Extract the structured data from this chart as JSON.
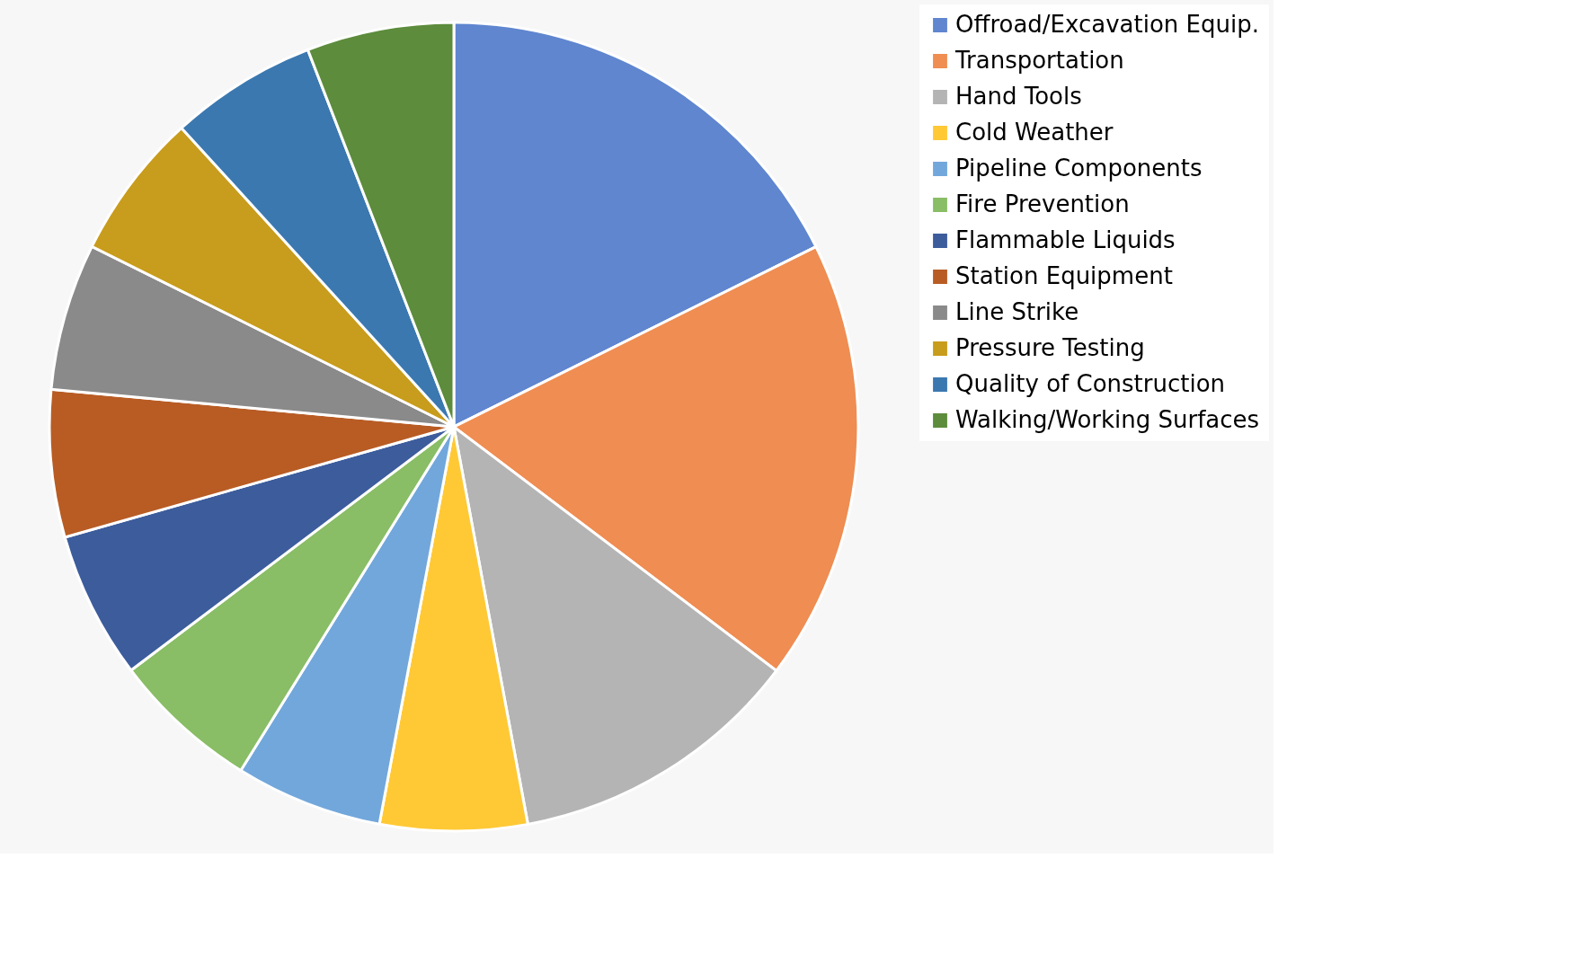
{
  "chart_data": {
    "type": "pie",
    "categories": [
      "Offroad/Excavation Equip.",
      "Transportation",
      "Hand Tools",
      "Cold Weather",
      "Pipeline Components",
      "Fire Prevention",
      "Flammable Liquids",
      "Station Equipment",
      "Line Strike",
      "Pressure Testing",
      "Quality of Construction",
      "Walking/Working Surfaces"
    ],
    "values": [
      17.65,
      17.65,
      11.76,
      5.88,
      5.88,
      5.88,
      5.88,
      5.88,
      5.88,
      5.88,
      5.88,
      5.88
    ],
    "colors": [
      "#5f86cf",
      "#ef8d52",
      "#b4b4b4",
      "#ffc936",
      "#72a7db",
      "#89bd66",
      "#3c5c9c",
      "#b85c24",
      "#8a8a8a",
      "#c89c1c",
      "#3b78b0",
      "#5c8c3c"
    ],
    "legend": "right"
  }
}
